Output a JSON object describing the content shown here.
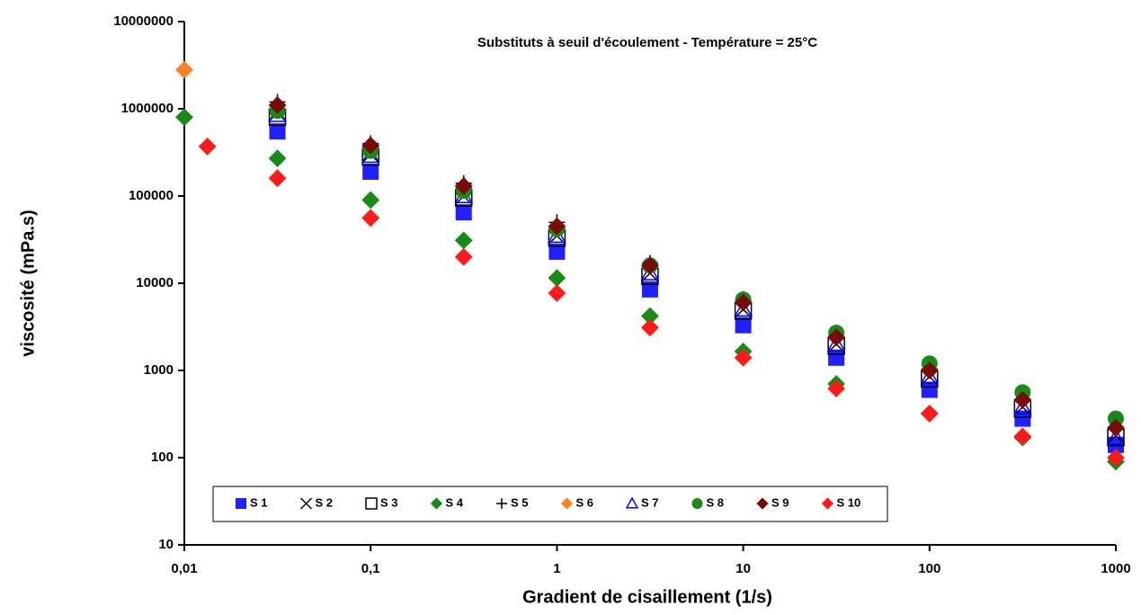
{
  "chart_data": {
    "type": "scatter",
    "title": "Substituts à seuil d'écoulement  - Température = 25°C",
    "x_label": "Gradient de cisaillement (1/s)",
    "y_label": "viscosité (mPa.s)",
    "xscale": "log",
    "yscale": "log",
    "xlim": [
      0.01,
      1000
    ],
    "ylim": [
      10,
      10000000
    ],
    "xticks": [
      {
        "value": 0.01,
        "label": "0,01"
      },
      {
        "value": 0.1,
        "label": "0,1"
      },
      1,
      10,
      100,
      1000
    ],
    "yticks": [
      10,
      100,
      1000,
      10000,
      100000,
      1000000,
      10000000
    ],
    "legend": "bottom-left",
    "series": [
      {
        "name": "S 1",
        "color": "#1f1fff",
        "marker": "square",
        "x": [
          0.0316,
          0.1,
          0.316,
          1,
          3.16,
          10,
          31.6,
          100,
          316,
          1000
        ],
        "values": [
          550000,
          190000,
          65000,
          23000,
          8500,
          3300,
          1400,
          600,
          280,
          140
        ]
      },
      {
        "name": "S 2",
        "color": "#000000",
        "marker": "x",
        "x": [
          0.0316,
          0.1,
          0.316,
          1,
          3.16,
          10,
          31.6,
          100,
          316,
          1000
        ],
        "values": [
          900000,
          300000,
          100000,
          35000,
          13000,
          5000,
          2000,
          850,
          380,
          180
        ]
      },
      {
        "name": "S 3",
        "color": "#000000",
        "marker": "square-open",
        "x": [
          0.0316,
          0.1,
          0.316,
          1,
          3.16,
          10,
          31.6,
          100,
          316,
          1000
        ],
        "values": [
          800000,
          280000,
          95000,
          33000,
          12000,
          4800,
          1900,
          800,
          360,
          170
        ]
      },
      {
        "name": "S 4",
        "color": "#178a17",
        "marker": "diamond",
        "x": [
          0.01,
          0.0316,
          0.1,
          0.316,
          1,
          3.16,
          10,
          31.6,
          100,
          316,
          1000
        ],
        "values": [
          800000,
          270000,
          90000,
          31000,
          11500,
          4200,
          1650,
          700,
          320,
          170,
          90
        ]
      },
      {
        "name": "S 5",
        "color": "#000000",
        "marker": "plus",
        "x": [
          0.0316,
          0.1,
          0.316,
          1,
          3.16,
          10,
          31.6,
          100,
          316,
          1000
        ],
        "values": [
          1200000,
          400000,
          140000,
          50000,
          17000,
          6500,
          2400,
          1000,
          450,
          220
        ]
      },
      {
        "name": "S 6",
        "color": "#ff7f27",
        "marker": "diamond",
        "x": [
          0.01
        ],
        "values": [
          2800000
        ]
      },
      {
        "name": "S 7",
        "color": "#0000ff",
        "marker": "triangle-open",
        "x": [
          0.0316,
          0.1,
          0.316,
          1,
          3.16,
          10,
          31.6,
          100,
          316,
          1000
        ],
        "values": [
          850000,
          290000,
          100000,
          35000,
          13000,
          5000,
          2000,
          850,
          380,
          170
        ]
      },
      {
        "name": "S 8",
        "color": "#178a17",
        "marker": "circle",
        "x": [
          0.0316,
          0.1,
          0.316,
          1,
          3.16,
          10,
          31.6,
          100,
          316,
          1000
        ],
        "values": [
          950000,
          330000,
          115000,
          42000,
          16000,
          6500,
          2700,
          1200,
          560,
          280
        ]
      },
      {
        "name": "S 9",
        "color": "#7a0a0a",
        "marker": "diamond",
        "x": [
          0.0316,
          0.1,
          0.316,
          1,
          3.16,
          10,
          31.6,
          100,
          316,
          1000
        ],
        "values": [
          1100000,
          380000,
          130000,
          45000,
          16000,
          6000,
          2400,
          1000,
          460,
          220
        ]
      },
      {
        "name": "S 10",
        "color": "#ff1a1a",
        "marker": "diamond",
        "x": [
          0.0133,
          0.0316,
          0.1,
          0.316,
          1,
          3.16,
          10,
          31.6,
          100,
          316,
          1000
        ],
        "values": [
          370000,
          160000,
          56000,
          20000,
          7700,
          3100,
          1400,
          620,
          320,
          175,
          100
        ]
      }
    ]
  }
}
